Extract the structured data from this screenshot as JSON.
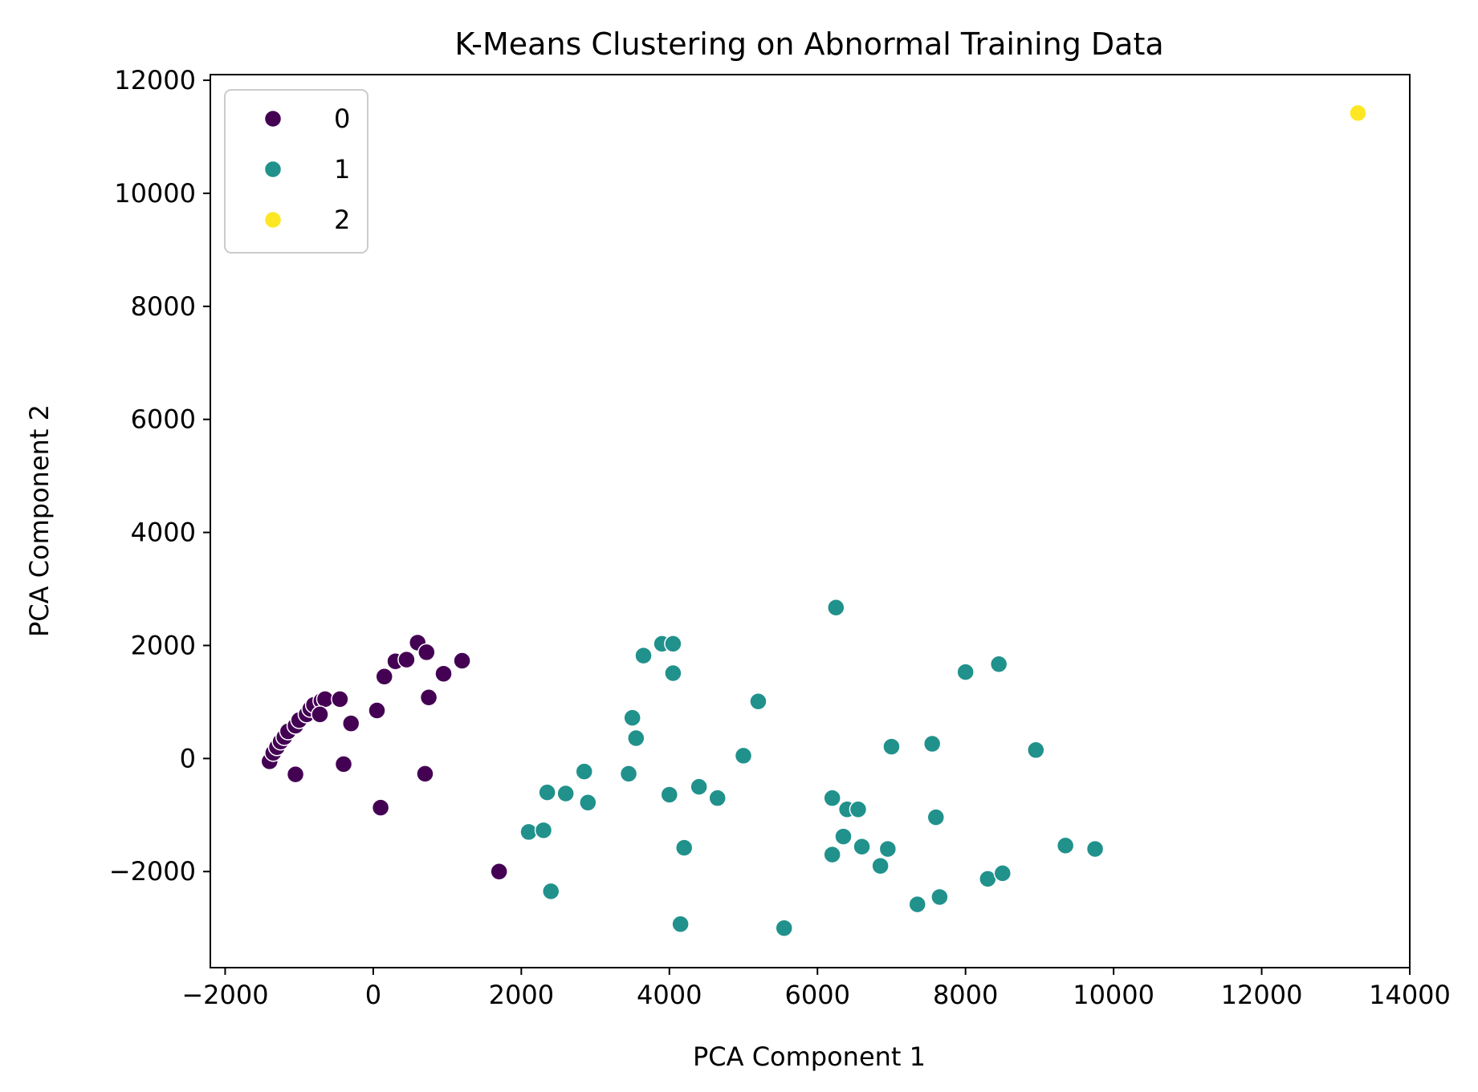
{
  "chart_data": {
    "type": "scatter",
    "title": "K-Means Clustering on Abnormal Training Data",
    "xlabel": "PCA Component 1",
    "ylabel": "PCA Component 2",
    "xlim": [
      -2200,
      14000
    ],
    "ylim": [
      -3700,
      12100
    ],
    "xticks": [
      -2000,
      0,
      2000,
      4000,
      6000,
      8000,
      10000,
      12000,
      14000
    ],
    "xtick_labels": [
      "−2000",
      "0",
      "2000",
      "4000",
      "6000",
      "8000",
      "10000",
      "12000",
      "14000"
    ],
    "yticks": [
      -2000,
      0,
      2000,
      4000,
      6000,
      8000,
      10000,
      12000
    ],
    "ytick_labels": [
      "−2000",
      "0",
      "2000",
      "4000",
      "6000",
      "8000",
      "10000",
      "12000"
    ],
    "grid": false,
    "legend": {
      "placement": "top-left",
      "entries": [
        "0",
        "1",
        "2"
      ]
    },
    "series": [
      {
        "name": "0",
        "color": "#440154",
        "points": [
          [
            -1400,
            -50
          ],
          [
            -1350,
            100
          ],
          [
            -1300,
            200
          ],
          [
            -1250,
            300
          ],
          [
            -1200,
            380
          ],
          [
            -1150,
            480
          ],
          [
            -1050,
            580
          ],
          [
            -1000,
            680
          ],
          [
            -900,
            780
          ],
          [
            -850,
            880
          ],
          [
            -800,
            950
          ],
          [
            -700,
            1020
          ],
          [
            -650,
            1050
          ],
          [
            -720,
            780
          ],
          [
            -450,
            1050
          ],
          [
            -1050,
            -280
          ],
          [
            -400,
            -100
          ],
          [
            -300,
            620
          ],
          [
            100,
            -870
          ],
          [
            50,
            850
          ],
          [
            150,
            1450
          ],
          [
            300,
            1720
          ],
          [
            450,
            1750
          ],
          [
            600,
            2050
          ],
          [
            720,
            1880
          ],
          [
            750,
            1080
          ],
          [
            700,
            -270
          ],
          [
            950,
            1500
          ],
          [
            1200,
            1730
          ],
          [
            1700,
            -2000
          ]
        ]
      },
      {
        "name": "1",
        "color": "#21918c",
        "points": [
          [
            2100,
            -1300
          ],
          [
            2300,
            -1270
          ],
          [
            2350,
            -600
          ],
          [
            2400,
            -2350
          ],
          [
            2600,
            -620
          ],
          [
            2850,
            -230
          ],
          [
            2900,
            -780
          ],
          [
            3450,
            -270
          ],
          [
            3500,
            720
          ],
          [
            3550,
            360
          ],
          [
            3650,
            1820
          ],
          [
            3900,
            2030
          ],
          [
            4050,
            2030
          ],
          [
            4050,
            1510
          ],
          [
            4000,
            -640
          ],
          [
            4150,
            -2930
          ],
          [
            4200,
            -1580
          ],
          [
            4400,
            -500
          ],
          [
            4650,
            -700
          ],
          [
            5000,
            50
          ],
          [
            5200,
            1010
          ],
          [
            5550,
            -3000
          ],
          [
            6200,
            -700
          ],
          [
            6200,
            -1700
          ],
          [
            6250,
            2670
          ],
          [
            6350,
            -1380
          ],
          [
            6400,
            -900
          ],
          [
            6550,
            -900
          ],
          [
            6600,
            -1560
          ],
          [
            6850,
            -1900
          ],
          [
            6950,
            -1600
          ],
          [
            7000,
            210
          ],
          [
            7350,
            -2580
          ],
          [
            7550,
            260
          ],
          [
            7600,
            -1040
          ],
          [
            7650,
            -2450
          ],
          [
            8000,
            1530
          ],
          [
            8300,
            -2130
          ],
          [
            8450,
            1670
          ],
          [
            8500,
            -2030
          ],
          [
            8950,
            150
          ],
          [
            9350,
            -1540
          ],
          [
            9750,
            -1600
          ]
        ]
      },
      {
        "name": "2",
        "color": "#fde725",
        "points": [
          [
            13300,
            11420
          ]
        ]
      }
    ]
  }
}
